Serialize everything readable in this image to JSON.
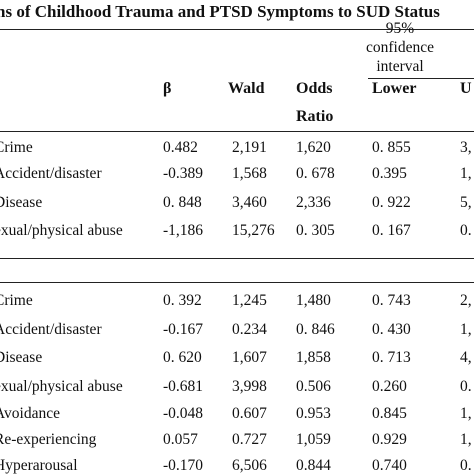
{
  "title": "ns of Childhood Trauma and PTSD Symptoms to SUD Status",
  "ci_header": [
    "95%",
    "confidence",
    "interval"
  ],
  "columns": {
    "beta": "β",
    "wald": "Wald",
    "odds_1": "Odds",
    "odds_2": "Ratio",
    "lower": "Lower",
    "upper": "U"
  },
  "section1": [
    {
      "label": "Crime",
      "beta": "0.482",
      "wald": "2,191",
      "odds": "1,620",
      "lower": "0. 855",
      "upper": "3,"
    },
    {
      "label": "Accident/disaster",
      "beta": "-0.389",
      "wald": "1,568",
      "odds": "0. 678",
      "lower": "0.395",
      "upper": "1,"
    },
    {
      "label": "Disease",
      "beta": "0. 848",
      "wald": "3,460",
      "odds": "2,336",
      "lower": "0. 922",
      "upper": "5,"
    },
    {
      "label": "exual/physical abuse",
      "beta": "-1,186",
      "wald": "15,276",
      "odds": "0. 305",
      "lower": "0. 167",
      "upper": "0."
    }
  ],
  "section2": [
    {
      "label": "Crime",
      "beta": "0. 392",
      "wald": "1,245",
      "odds": "1,480",
      "lower": "0. 743",
      "upper": "2,"
    },
    {
      "label": "Accident/disaster",
      "beta": "-0.167",
      "wald": "0.234",
      "odds": "0. 846",
      "lower": "0. 430",
      "upper": "1,"
    },
    {
      "label": "Disease",
      "beta": "0. 620",
      "wald": "1,607",
      "odds": "1,858",
      "lower": "0. 713",
      "upper": "4,"
    },
    {
      "label": "exual/physical abuse",
      "beta": "-0.681",
      "wald": "3,998",
      "odds": "0.506",
      "lower": "0.260",
      "upper": "0."
    },
    {
      "label": "Avoidance",
      "beta": "-0.048",
      "wald": "0.607",
      "odds": "0.953",
      "lower": "0.845",
      "upper": "1,"
    },
    {
      "label": "Re-experiencing",
      "beta": "0.057",
      "wald": "0.727",
      "odds": "1,059",
      "lower": "0.929",
      "upper": "1,"
    },
    {
      "label": "Hyperarousal",
      "beta": "-0.170",
      "wald": "6,506",
      "odds": "0.844",
      "lower": "0.740",
      "upper": "0."
    }
  ]
}
